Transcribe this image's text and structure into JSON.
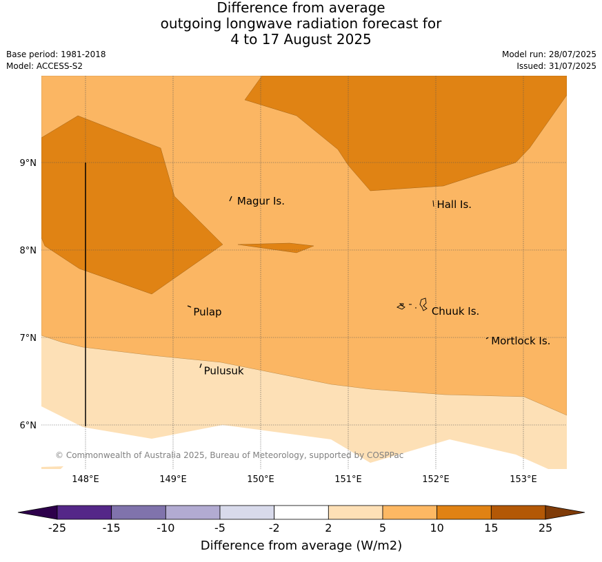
{
  "title": {
    "line1": "Difference from average",
    "line2": "outgoing longwave radiation forecast for",
    "line3": "4 to 17 August 2025"
  },
  "meta": {
    "base_period": "Base period: 1981-2018",
    "model": "Model: ACCESS-S2",
    "model_run": "Model run: 28/07/2025",
    "issued": "Issued: 31/07/2025"
  },
  "map": {
    "lon_range": [
      147.5,
      153.5
    ],
    "lat_range": [
      5.5,
      10.0
    ],
    "lon_ticks": [
      {
        "value": 148,
        "label": "148°E"
      },
      {
        "value": 149,
        "label": "149°E"
      },
      {
        "value": 150,
        "label": "150°E"
      },
      {
        "value": 151,
        "label": "151°E"
      },
      {
        "value": 152,
        "label": "152°E"
      },
      {
        "value": 153,
        "label": "153°E"
      }
    ],
    "lat_ticks": [
      {
        "value": 9,
        "label": "9°N"
      },
      {
        "value": 8,
        "label": "8°N"
      },
      {
        "value": 7,
        "label": "7°N"
      },
      {
        "value": 6,
        "label": "6°N"
      }
    ],
    "places": [
      {
        "name": "Magur Is.",
        "lon": 149.7,
        "lat": 8.56
      },
      {
        "name": "Hall Is.",
        "lon": 151.98,
        "lat": 8.52
      },
      {
        "name": "Pulap",
        "lon": 149.2,
        "lat": 7.29
      },
      {
        "name": "Chuuk Is.",
        "lon": 151.92,
        "lat": 7.3
      },
      {
        "name": "Mortlock Is.",
        "lon": 152.6,
        "lat": 6.96
      },
      {
        "name": "Pulusuk",
        "lon": 149.32,
        "lat": 6.62
      }
    ],
    "copyright": "© Commonwealth of Australia 2025, Bureau of Meteorology, supported by COSPPac",
    "colors": {
      "2_to_5": "#fde0b6",
      "5_to_10": "#fbb663",
      "10_to_15": "#e08314",
      "lt_2": "#ffffff"
    }
  },
  "colorbar": {
    "title": "Difference from average (W/m2)",
    "labels": [
      "-25",
      "-15",
      "-10",
      "-5",
      "-2",
      "2",
      "5",
      "10",
      "15",
      "25"
    ],
    "colors": [
      "#2d004b",
      "#542788",
      "#8073ac",
      "#b2abd2",
      "#d8daeb",
      "#ffffff",
      "#fee0b6",
      "#fdb863",
      "#e08214",
      "#b35806",
      "#7f3b08"
    ]
  }
}
